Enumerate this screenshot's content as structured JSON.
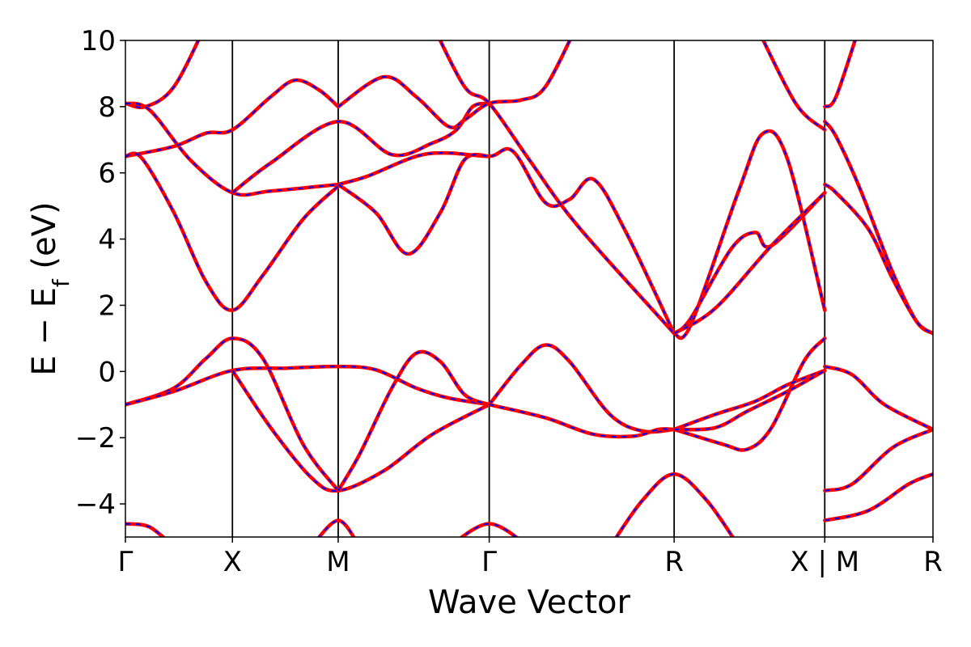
{
  "chart_data": {
    "type": "line",
    "title": "",
    "xlabel": "Wave Vector",
    "ylabel": {
      "main": "E − E",
      "sub": "f",
      "unit": " (eV)"
    },
    "ylim": [
      -5,
      10
    ],
    "yticks": [
      -4,
      -2,
      0,
      2,
      4,
      6,
      8,
      10
    ],
    "ytick_labels": [
      "−4",
      "−2",
      "0",
      "2",
      "4",
      "6",
      "8",
      "10"
    ],
    "xlim": [
      0,
      1
    ],
    "high_symmetry_points": [
      {
        "label": "Γ",
        "x": 0.0
      },
      {
        "label": "X",
        "x": 0.1325
      },
      {
        "label": "M",
        "x": 0.2635
      },
      {
        "label": "Γ",
        "x": 0.4505
      },
      {
        "label": "R",
        "x": 0.6795
      },
      {
        "label": "X | M",
        "x": 0.866
      },
      {
        "label": "R",
        "x": 1.0
      }
    ],
    "grid": false,
    "legend": "none",
    "colors": {
      "solid_line": "#ff0000",
      "dashed_line": "#0000ff",
      "divider": "#000000"
    },
    "series": [
      {
        "values": [
          [
            0.0,
            8.1
          ],
          [
            0.025,
            8.0
          ],
          [
            0.06,
            8.6
          ],
          [
            0.1,
            10.5
          ]
        ]
      },
      {
        "values": [
          [
            0.0,
            8.1
          ],
          [
            0.03,
            7.9
          ],
          [
            0.08,
            6.4
          ],
          [
            0.1325,
            5.4
          ],
          [
            0.18,
            5.45
          ],
          [
            0.2635,
            5.65
          ]
        ]
      },
      {
        "values": [
          [
            0.0,
            6.5
          ],
          [
            0.06,
            6.8
          ],
          [
            0.1,
            7.2
          ],
          [
            0.1325,
            7.3
          ],
          [
            0.18,
            8.3
          ],
          [
            0.21,
            8.8
          ],
          [
            0.24,
            8.5
          ],
          [
            0.2635,
            8.0
          ]
        ]
      },
      {
        "values": [
          [
            0.0,
            6.5
          ],
          [
            0.02,
            6.45
          ],
          [
            0.06,
            4.8
          ],
          [
            0.1,
            2.7
          ],
          [
            0.1325,
            1.85
          ],
          [
            0.17,
            2.9
          ],
          [
            0.22,
            4.6
          ],
          [
            0.2635,
            5.6
          ]
        ]
      },
      {
        "values": [
          [
            0.1325,
            5.4
          ],
          [
            0.18,
            6.3
          ],
          [
            0.2635,
            7.55
          ],
          [
            0.33,
            6.55
          ],
          [
            0.38,
            6.9
          ],
          [
            0.41,
            7.3
          ],
          [
            0.43,
            8.0
          ],
          [
            0.4505,
            8.1
          ]
        ]
      },
      {
        "values": [
          [
            0.2635,
            8.0
          ],
          [
            0.32,
            8.9
          ],
          [
            0.36,
            8.3
          ],
          [
            0.4,
            7.4
          ],
          [
            0.42,
            7.6
          ],
          [
            0.4505,
            8.1
          ],
          [
            0.49,
            8.2
          ],
          [
            0.52,
            8.6
          ],
          [
            0.56,
            10.5
          ]
        ]
      },
      {
        "values": [
          [
            0.2635,
            5.65
          ],
          [
            0.3,
            5.9
          ],
          [
            0.36,
            6.5
          ],
          [
            0.4,
            6.6
          ],
          [
            0.4505,
            6.5
          ],
          [
            0.48,
            6.65
          ],
          [
            0.52,
            5.1
          ],
          [
            0.55,
            5.2
          ],
          [
            0.58,
            5.8
          ],
          [
            0.62,
            4.2
          ],
          [
            0.6795,
            1.15
          ]
        ]
      },
      {
        "values": [
          [
            0.2635,
            5.65
          ],
          [
            0.31,
            4.8
          ],
          [
            0.35,
            3.55
          ],
          [
            0.39,
            4.8
          ],
          [
            0.42,
            6.4
          ],
          [
            0.4505,
            6.5
          ]
        ]
      },
      {
        "values": [
          [
            0.38,
            10.5
          ],
          [
            0.42,
            8.6
          ],
          [
            0.4505,
            8.1
          ],
          [
            0.5,
            6.4
          ],
          [
            0.56,
            4.4
          ],
          [
            0.6795,
            1.15
          ]
        ]
      },
      {
        "values": [
          [
            0.6795,
            1.15
          ],
          [
            0.7,
            1.4
          ],
          [
            0.76,
            5.5
          ],
          [
            0.79,
            7.2
          ],
          [
            0.82,
            6.4
          ],
          [
            0.866,
            1.85
          ]
        ]
      },
      {
        "values": [
          [
            0.6795,
            1.15
          ],
          [
            0.7,
            1.6
          ],
          [
            0.75,
            3.7
          ],
          [
            0.78,
            4.2
          ],
          [
            0.8,
            3.8
          ],
          [
            0.866,
            5.4
          ]
        ]
      },
      {
        "values": [
          [
            0.6795,
            1.15
          ],
          [
            0.73,
            1.9
          ],
          [
            0.8,
            3.8
          ],
          [
            0.866,
            5.4
          ]
        ]
      },
      {
        "values": [
          [
            0.78,
            10.5
          ],
          [
            0.83,
            8.1
          ],
          [
            0.866,
            7.3
          ]
        ]
      },
      {
        "values": [
          [
            0.866,
            8.0
          ],
          [
            0.88,
            8.3
          ],
          [
            0.91,
            10.5
          ]
        ]
      },
      {
        "values": [
          [
            0.866,
            7.55
          ],
          [
            0.88,
            7.1
          ],
          [
            0.91,
            5.5
          ],
          [
            0.95,
            3.0
          ],
          [
            0.98,
            1.5
          ],
          [
            1.0,
            1.15
          ]
        ]
      },
      {
        "values": [
          [
            0.866,
            5.65
          ],
          [
            0.88,
            5.4
          ],
          [
            0.92,
            4.3
          ],
          [
            0.95,
            2.8
          ],
          [
            0.98,
            1.5
          ],
          [
            1.0,
            1.15
          ]
        ]
      },
      {
        "values": [
          [
            0.0,
            -1.0
          ],
          [
            0.06,
            -0.5
          ],
          [
            0.1,
            0.4
          ],
          [
            0.1325,
            1.0
          ],
          [
            0.17,
            0.4
          ],
          [
            0.22,
            -2.2
          ],
          [
            0.2635,
            -3.6
          ]
        ]
      },
      {
        "values": [
          [
            0.0,
            -1.0
          ],
          [
            0.06,
            -0.6
          ],
          [
            0.1325,
            0.03
          ],
          [
            0.2,
            0.1
          ],
          [
            0.2635,
            0.15
          ],
          [
            0.31,
            0.05
          ],
          [
            0.36,
            -0.5
          ],
          [
            0.4,
            -0.8
          ],
          [
            0.4505,
            -1.0
          ]
        ]
      },
      {
        "values": [
          [
            0.1325,
            0.03
          ],
          [
            0.18,
            -1.7
          ],
          [
            0.23,
            -3.2
          ],
          [
            0.2635,
            -3.6
          ],
          [
            0.32,
            -3.0
          ],
          [
            0.38,
            -1.9
          ],
          [
            0.4505,
            -1.0
          ]
        ]
      },
      {
        "values": [
          [
            0.2635,
            -3.6
          ],
          [
            0.29,
            -2.5
          ],
          [
            0.33,
            -0.5
          ],
          [
            0.36,
            0.55
          ],
          [
            0.39,
            0.3
          ],
          [
            0.42,
            -0.7
          ],
          [
            0.4505,
            -1.0
          ]
        ]
      },
      {
        "values": [
          [
            0.4505,
            -1.0
          ],
          [
            0.49,
            0.2
          ],
          [
            0.52,
            0.8
          ],
          [
            0.55,
            0.3
          ],
          [
            0.6,
            -1.3
          ],
          [
            0.64,
            -1.8
          ],
          [
            0.6795,
            -1.75
          ]
        ]
      },
      {
        "values": [
          [
            0.4505,
            -1.0
          ],
          [
            0.52,
            -1.4
          ],
          [
            0.58,
            -1.9
          ],
          [
            0.63,
            -1.95
          ],
          [
            0.66,
            -1.75
          ],
          [
            0.6795,
            -1.75
          ]
        ]
      },
      {
        "values": [
          [
            0.6795,
            -1.75
          ],
          [
            0.74,
            -2.2
          ],
          [
            0.77,
            -2.35
          ],
          [
            0.8,
            -1.7
          ],
          [
            0.84,
            0.3
          ],
          [
            0.866,
            1.0
          ]
        ]
      },
      {
        "values": [
          [
            0.6795,
            -1.75
          ],
          [
            0.73,
            -1.3
          ],
          [
            0.78,
            -0.9
          ],
          [
            0.82,
            -0.4
          ],
          [
            0.866,
            0.03
          ]
        ]
      },
      {
        "values": [
          [
            0.6795,
            -1.75
          ],
          [
            0.73,
            -1.7
          ],
          [
            0.77,
            -1.2
          ],
          [
            0.82,
            -0.6
          ],
          [
            0.866,
            0.03
          ]
        ]
      },
      {
        "values": [
          [
            0.866,
            0.15
          ],
          [
            0.9,
            -0.1
          ],
          [
            0.94,
            -1.0
          ],
          [
            1.0,
            -1.75
          ]
        ]
      },
      {
        "values": [
          [
            0.866,
            -3.6
          ],
          [
            0.9,
            -3.4
          ],
          [
            0.95,
            -2.3
          ],
          [
            1.0,
            -1.75
          ]
        ]
      },
      {
        "values": [
          [
            0.866,
            -4.5
          ],
          [
            0.92,
            -4.2
          ],
          [
            0.97,
            -3.4
          ],
          [
            1.0,
            -3.1
          ]
        ]
      },
      {
        "values": [
          [
            0.6,
            -5.3
          ],
          [
            0.64,
            -3.9
          ],
          [
            0.6795,
            -3.1
          ],
          [
            0.72,
            -3.9
          ],
          [
            0.76,
            -5.3
          ]
        ]
      },
      {
        "values": [
          [
            0.0,
            -4.6
          ],
          [
            0.03,
            -4.7
          ],
          [
            0.06,
            -5.3
          ]
        ]
      },
      {
        "values": [
          [
            0.23,
            -5.3
          ],
          [
            0.2635,
            -4.5
          ],
          [
            0.29,
            -5.3
          ]
        ]
      },
      {
        "values": [
          [
            0.4,
            -5.3
          ],
          [
            0.4505,
            -4.6
          ],
          [
            0.5,
            -5.3
          ]
        ]
      }
    ]
  }
}
